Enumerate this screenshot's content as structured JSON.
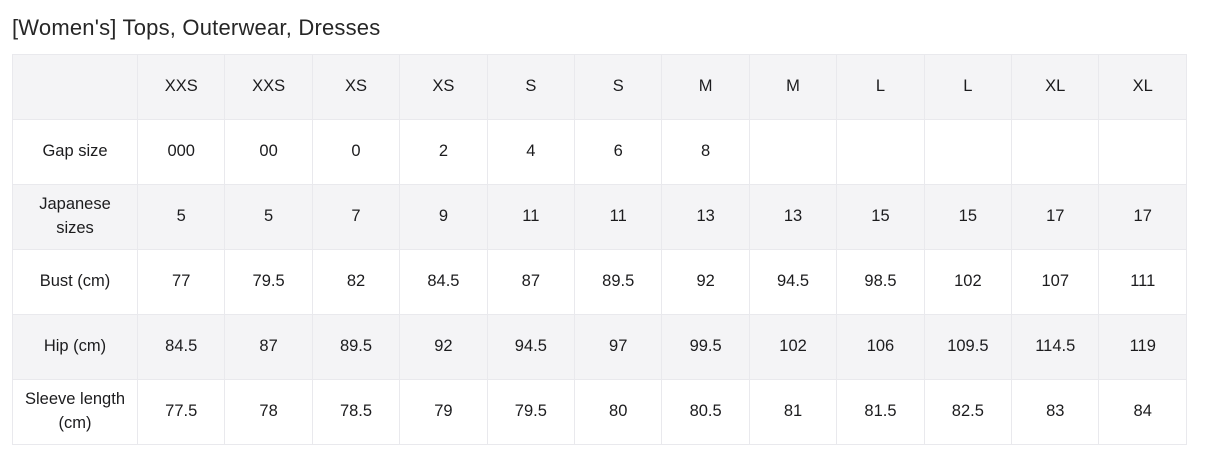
{
  "page": {
    "title": "[Women's] Tops, Outerwear, Dresses"
  },
  "colors": {
    "stripe_bg": "#f4f4f6",
    "border": "#e9e9ed",
    "text": "#1c1c1e"
  },
  "table": {
    "columns": [
      "XXS",
      "XXS",
      "XS",
      "XS",
      "S",
      "S",
      "M",
      "M",
      "L",
      "L",
      "XL",
      "XL"
    ],
    "rows": [
      {
        "label": "Gap size",
        "values": [
          "000",
          "00",
          "0",
          "2",
          "4",
          "6",
          "8",
          "",
          "",
          "",
          "",
          ""
        ]
      },
      {
        "label": "Japanese sizes",
        "values": [
          "5",
          "5",
          "7",
          "9",
          "11",
          "11",
          "13",
          "13",
          "15",
          "15",
          "17",
          "17"
        ]
      },
      {
        "label": "Bust (cm)",
        "values": [
          "77",
          "79.5",
          "82",
          "84.5",
          "87",
          "89.5",
          "92",
          "94.5",
          "98.5",
          "102",
          "107",
          "111"
        ]
      },
      {
        "label": "Hip (cm)",
        "values": [
          "84.5",
          "87",
          "89.5",
          "92",
          "94.5",
          "97",
          "99.5",
          "102",
          "106",
          "109.5",
          "114.5",
          "119"
        ]
      },
      {
        "label": "Sleeve length (cm)",
        "values": [
          "77.5",
          "78",
          "78.5",
          "79",
          "79.5",
          "80",
          "80.5",
          "81",
          "81.5",
          "82.5",
          "83",
          "84"
        ]
      }
    ]
  }
}
